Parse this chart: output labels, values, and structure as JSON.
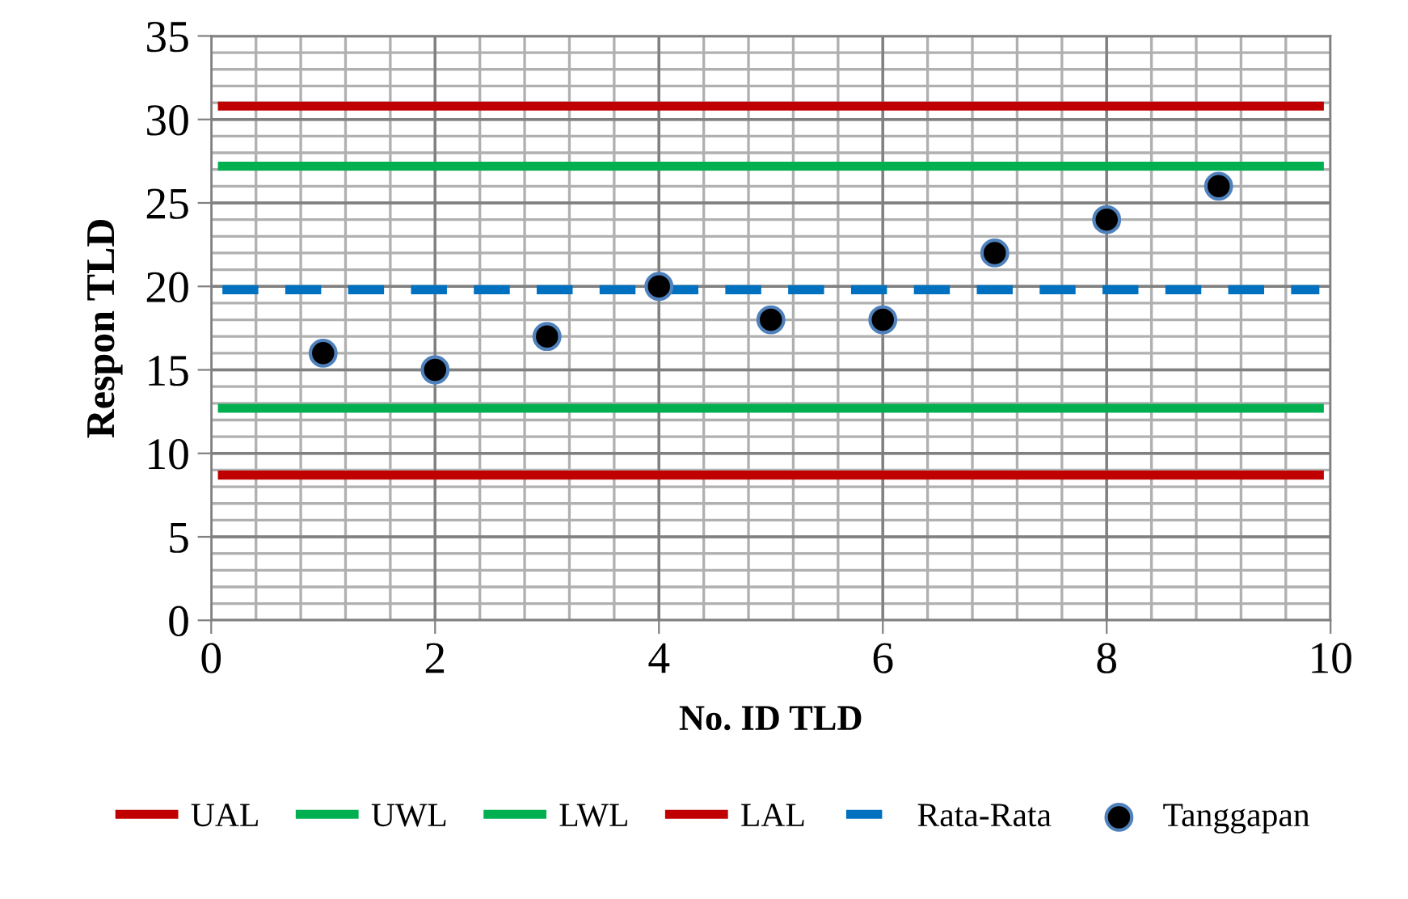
{
  "chart_data": {
    "type": "scatter",
    "xlabel": "No. ID TLD",
    "ylabel": "Respon TLD",
    "xlim": [
      0,
      10
    ],
    "ylim": [
      0,
      35
    ],
    "xticks": [
      0,
      2,
      4,
      6,
      8,
      10
    ],
    "yticks": [
      0,
      5,
      10,
      15,
      20,
      25,
      30,
      35
    ],
    "grid": true,
    "legend": "bottom",
    "series": [
      {
        "name": "UAL",
        "type": "line",
        "color": "#c00000",
        "line_style": "solid",
        "x": [
          0.1,
          9.9
        ],
        "values": [
          30.8,
          30.8
        ]
      },
      {
        "name": "UWL",
        "type": "line",
        "color": "#00b050",
        "line_style": "solid",
        "x": [
          0.1,
          9.9
        ],
        "values": [
          27.2,
          27.2
        ]
      },
      {
        "name": "LWL",
        "type": "line",
        "color": "#00b050",
        "line_style": "solid",
        "x": [
          0.1,
          9.9
        ],
        "values": [
          12.7,
          12.7
        ]
      },
      {
        "name": "LAL",
        "type": "line",
        "color": "#c00000",
        "line_style": "solid",
        "x": [
          0.1,
          9.9
        ],
        "values": [
          8.7,
          8.7
        ]
      },
      {
        "name": "Rata-Rata",
        "type": "line",
        "color": "#0070c0",
        "line_style": "dashed",
        "x": [
          0.1,
          9.9
        ],
        "values": [
          19.8,
          19.8
        ]
      },
      {
        "name": "Tanggapan",
        "color": "#000000",
        "marker": "circle",
        "x": [
          1,
          2,
          3,
          4,
          5,
          6,
          7,
          8,
          9
        ],
        "values": [
          16,
          15,
          17,
          20,
          18,
          18,
          22,
          24,
          26
        ]
      }
    ]
  }
}
